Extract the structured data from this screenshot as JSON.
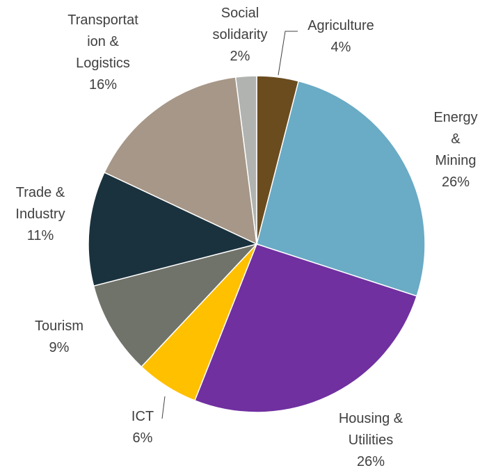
{
  "chart_data": {
    "type": "pie",
    "categories": [
      "Agriculture",
      "Energy &\nMining",
      "Housing &\nUtilities",
      "ICT",
      "Tourism",
      "Trade &\nIndustry",
      "Transportat\nion &\nLogistics",
      "Social\nsolidarity"
    ],
    "values": [
      4,
      26,
      26,
      6,
      9,
      11,
      16,
      2
    ],
    "value_labels": [
      "4%",
      "26%",
      "26%",
      "6%",
      "9%",
      "11%",
      "16%",
      "2%"
    ],
    "colors": [
      "#6b4c1e",
      "#6aabc5",
      "#7030a0",
      "#ffc000",
      "#70736a",
      "#1a323d",
      "#a69788",
      "#b0b3b0"
    ]
  }
}
